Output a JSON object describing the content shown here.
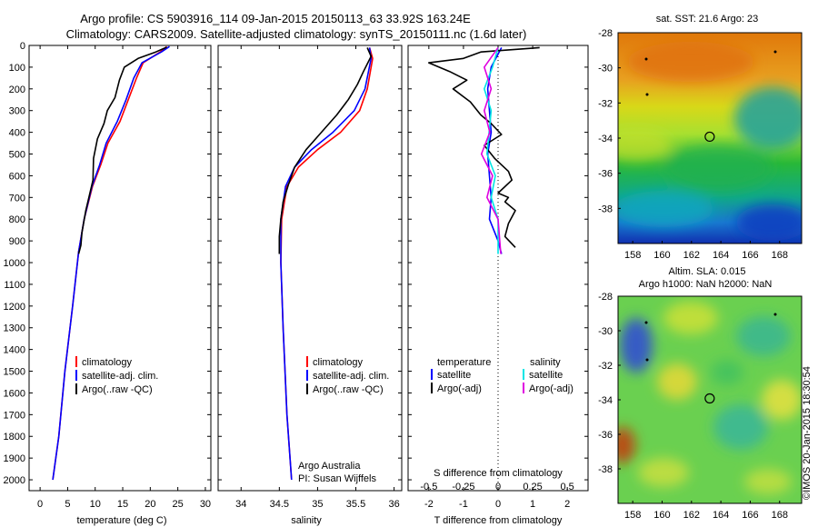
{
  "header": {
    "line1": "Argo profile: CS 5903916_114 09-Jan-2015 20150113_63 33.92S 163.24E",
    "line2": "Climatology: CARS2009. Satellite-adjusted climatology: synTS_20150111.nc (1.6d later)"
  },
  "colors": {
    "climatology": "#ff0000",
    "satellite": "#0000ff",
    "argo": "#000000",
    "sal_satellite": "#00e5e5",
    "sal_argo": "#e000e0"
  },
  "chart_data": [
    {
      "type": "line",
      "name": "temperature-panel",
      "xlabel": "temperature (deg C)",
      "ylabel": "",
      "xlim": [
        -2,
        31
      ],
      "ylim": [
        2050,
        0
      ],
      "xticks": [
        0,
        5,
        10,
        15,
        20,
        25,
        30
      ],
      "xtick_labels": [
        "0",
        "5",
        "10",
        "15",
        "20",
        "25",
        "30"
      ],
      "yticks": [
        0,
        100,
        200,
        300,
        400,
        500,
        600,
        700,
        800,
        900,
        1000,
        1100,
        1200,
        1300,
        1400,
        1500,
        1600,
        1700,
        1800,
        1900,
        2000
      ],
      "ytick_labels": [
        "0",
        "100",
        "200",
        "300",
        "400",
        "500",
        "600",
        "700",
        "800",
        "900",
        "1000",
        "1100",
        "1200",
        "1300",
        "1400",
        "1500",
        "1600",
        "1700",
        "1800",
        "1900",
        "2000"
      ],
      "legend": [
        "climatology",
        "satellite-adj. clim.",
        "Argo(..raw -QC)"
      ],
      "series": [
        {
          "name": "climatology",
          "color_key": "climatology",
          "x": [
            23,
            21.8,
            18.7,
            17.5,
            16,
            14.5,
            12.3,
            11,
            9.5,
            8,
            7,
            5.9,
            4.5,
            3.4,
            2.3
          ],
          "y": [
            5,
            30,
            80,
            150,
            250,
            350,
            450,
            550,
            650,
            800,
            950,
            1200,
            1500,
            1800,
            2000
          ]
        },
        {
          "name": "satellite-adj. clim.",
          "color_key": "satellite",
          "x": [
            23.5,
            22,
            18.5,
            17,
            15.6,
            14,
            12,
            10.8,
            9.4,
            8,
            7,
            5.9,
            4.5,
            3.4,
            2.3
          ],
          "y": [
            5,
            30,
            80,
            150,
            250,
            350,
            450,
            550,
            650,
            800,
            950,
            1200,
            1500,
            1800,
            2000
          ]
        },
        {
          "name": "Argo(..raw -QC)",
          "color_key": "argo",
          "x": [
            23,
            21,
            17.8,
            15.3,
            14.4,
            13.6,
            12.2,
            11.6,
            10.4,
            9.7,
            9.6,
            8.3,
            7.6,
            7.4,
            7.0
          ],
          "y": [
            8,
            30,
            60,
            100,
            160,
            240,
            300,
            360,
            430,
            520,
            620,
            760,
            860,
            920,
            960
          ]
        }
      ]
    },
    {
      "type": "line",
      "name": "salinity-panel",
      "xlabel": "salinity",
      "xlim": [
        33.7,
        36.1
      ],
      "ylim": [
        2050,
        0
      ],
      "xticks": [
        34,
        34.5,
        35,
        35.5,
        36
      ],
      "xtick_labels": [
        "34",
        "34.5",
        "35",
        "35.5",
        "36"
      ],
      "legend": [
        "climatology",
        "satellite-adj. clim.",
        "Argo(..raw -QC)"
      ],
      "annotation": [
        "Argo Australia",
        "PI: Susan Wijffels"
      ],
      "series": [
        {
          "name": "climatology",
          "color_key": "climatology",
          "x": [
            35.68,
            35.72,
            35.65,
            35.55,
            35.3,
            35.0,
            34.75,
            34.6,
            34.53,
            34.52,
            34.55,
            34.6,
            34.66
          ],
          "y": [
            10,
            60,
            200,
            300,
            400,
            480,
            560,
            650,
            800,
            1000,
            1300,
            1700,
            2000
          ]
        },
        {
          "name": "satellite-adj. clim.",
          "color_key": "satellite",
          "x": [
            35.68,
            35.7,
            35.62,
            35.48,
            35.2,
            34.92,
            34.7,
            34.58,
            34.52,
            34.52,
            34.55,
            34.6,
            34.66
          ],
          "y": [
            10,
            60,
            200,
            300,
            400,
            480,
            560,
            650,
            800,
            1000,
            1300,
            1700,
            2000
          ]
        },
        {
          "name": "Argo(..raw -QC)",
          "color_key": "argo",
          "x": [
            35.65,
            35.7,
            35.6,
            35.52,
            35.4,
            35.25,
            35.05,
            34.85,
            34.7,
            34.62,
            34.55,
            34.52,
            34.5,
            34.5
          ],
          "y": [
            10,
            50,
            120,
            180,
            250,
            320,
            400,
            480,
            560,
            640,
            720,
            800,
            880,
            960
          ]
        }
      ]
    },
    {
      "type": "line",
      "name": "difference-panel",
      "xlabel": "T difference from climatology",
      "xlabel2": "S difference from climatology",
      "xlim": [
        -2.6,
        2.6
      ],
      "ylim": [
        2050,
        0
      ],
      "xticks": [
        -2,
        -1,
        0,
        1,
        2
      ],
      "xtick_labels": [
        "-2",
        "-1",
        "0",
        "1",
        "2"
      ],
      "sticks": [
        -0.5,
        -0.25,
        0,
        0.25,
        0.5
      ],
      "stick_labels": [
        "-0.5",
        "-0.25",
        "0",
        "0.25",
        "0.5"
      ],
      "legend_temperature": [
        "temperature",
        "satellite",
        "Argo(-adj)"
      ],
      "legend_salinity": [
        "salinity",
        "satellite",
        "Argo(-adj)"
      ],
      "series": [
        {
          "name": "T satellite",
          "color_key": "satellite",
          "x": [
            0.1,
            -0.2,
            -0.3,
            -0.25,
            -0.2,
            -0.3,
            -0.25,
            -0.2,
            -0.25,
            0.0,
            0.1
          ],
          "y": [
            10,
            100,
            200,
            300,
            400,
            500,
            600,
            700,
            800,
            900,
            960
          ]
        },
        {
          "name": "T Argo(-adj)",
          "color_key": "argo",
          "x": [
            1.2,
            -0.5,
            -1.0,
            -2.0,
            -1.4,
            -0.9,
            -1.3,
            -0.8,
            -0.5,
            -0.2,
            0.1,
            -0.4,
            -0.1,
            0.3,
            0.4,
            0.0,
            0.3,
            0.2,
            0.5,
            0.3,
            0.2,
            0.5
          ],
          "y": [
            10,
            30,
            60,
            80,
            120,
            160,
            200,
            260,
            320,
            360,
            410,
            460,
            520,
            580,
            620,
            680,
            700,
            720,
            760,
            820,
            880,
            930
          ]
        },
        {
          "name": "S satellite",
          "color_key": "sal_satellite",
          "x": [
            0.0,
            -0.04,
            -0.1,
            -0.05,
            -0.08,
            -0.02,
            -0.05,
            0.0,
            0.0
          ],
          "y": [
            10,
            100,
            200,
            300,
            500,
            600,
            700,
            800,
            960
          ]
        },
        {
          "name": "S Argo(-adj)",
          "color_key": "sal_argo",
          "x": [
            0.0,
            -0.1,
            -0.05,
            -0.1,
            -0.06,
            -0.12,
            -0.04,
            -0.08,
            0.0,
            0.02
          ],
          "y": [
            10,
            100,
            200,
            300,
            400,
            500,
            600,
            700,
            800,
            960
          ]
        }
      ]
    },
    {
      "type": "heatmap",
      "name": "sst-map",
      "title": "sat. SST: 21.6 Argo: 23",
      "xlim": [
        157,
        169.5
      ],
      "ylim": [
        -40,
        -28
      ],
      "xticks": [
        158,
        160,
        162,
        164,
        166,
        168
      ],
      "xtick_labels": [
        "158",
        "160",
        "162",
        "164",
        "166",
        "168"
      ],
      "yticks": [
        -28,
        -30,
        -32,
        -34,
        -36,
        -38
      ],
      "ytick_labels": [
        "-28",
        "-30",
        "-32",
        "-34",
        "-36",
        "-38"
      ],
      "float_position": [
        163.24,
        -33.92
      ]
    },
    {
      "type": "heatmap",
      "name": "sla-map",
      "title": "Altim. SLA: 0.015",
      "subtitle": "Argo h1000: NaN h2000: NaN",
      "xlim": [
        157,
        169.5
      ],
      "ylim": [
        -40,
        -28
      ],
      "xticks": [
        158,
        160,
        162,
        164,
        166,
        168
      ],
      "xtick_labels": [
        "158",
        "160",
        "162",
        "164",
        "166",
        "168"
      ],
      "yticks": [
        -28,
        -30,
        -32,
        -34,
        -36,
        -38
      ],
      "ytick_labels": [
        "-28",
        "-30",
        "-32",
        "-34",
        "-36",
        "-38"
      ],
      "float_position": [
        163.24,
        -33.92
      ]
    }
  ],
  "footer": {
    "credit": "©IMOS 20-Jan-2015 18:30:54"
  }
}
